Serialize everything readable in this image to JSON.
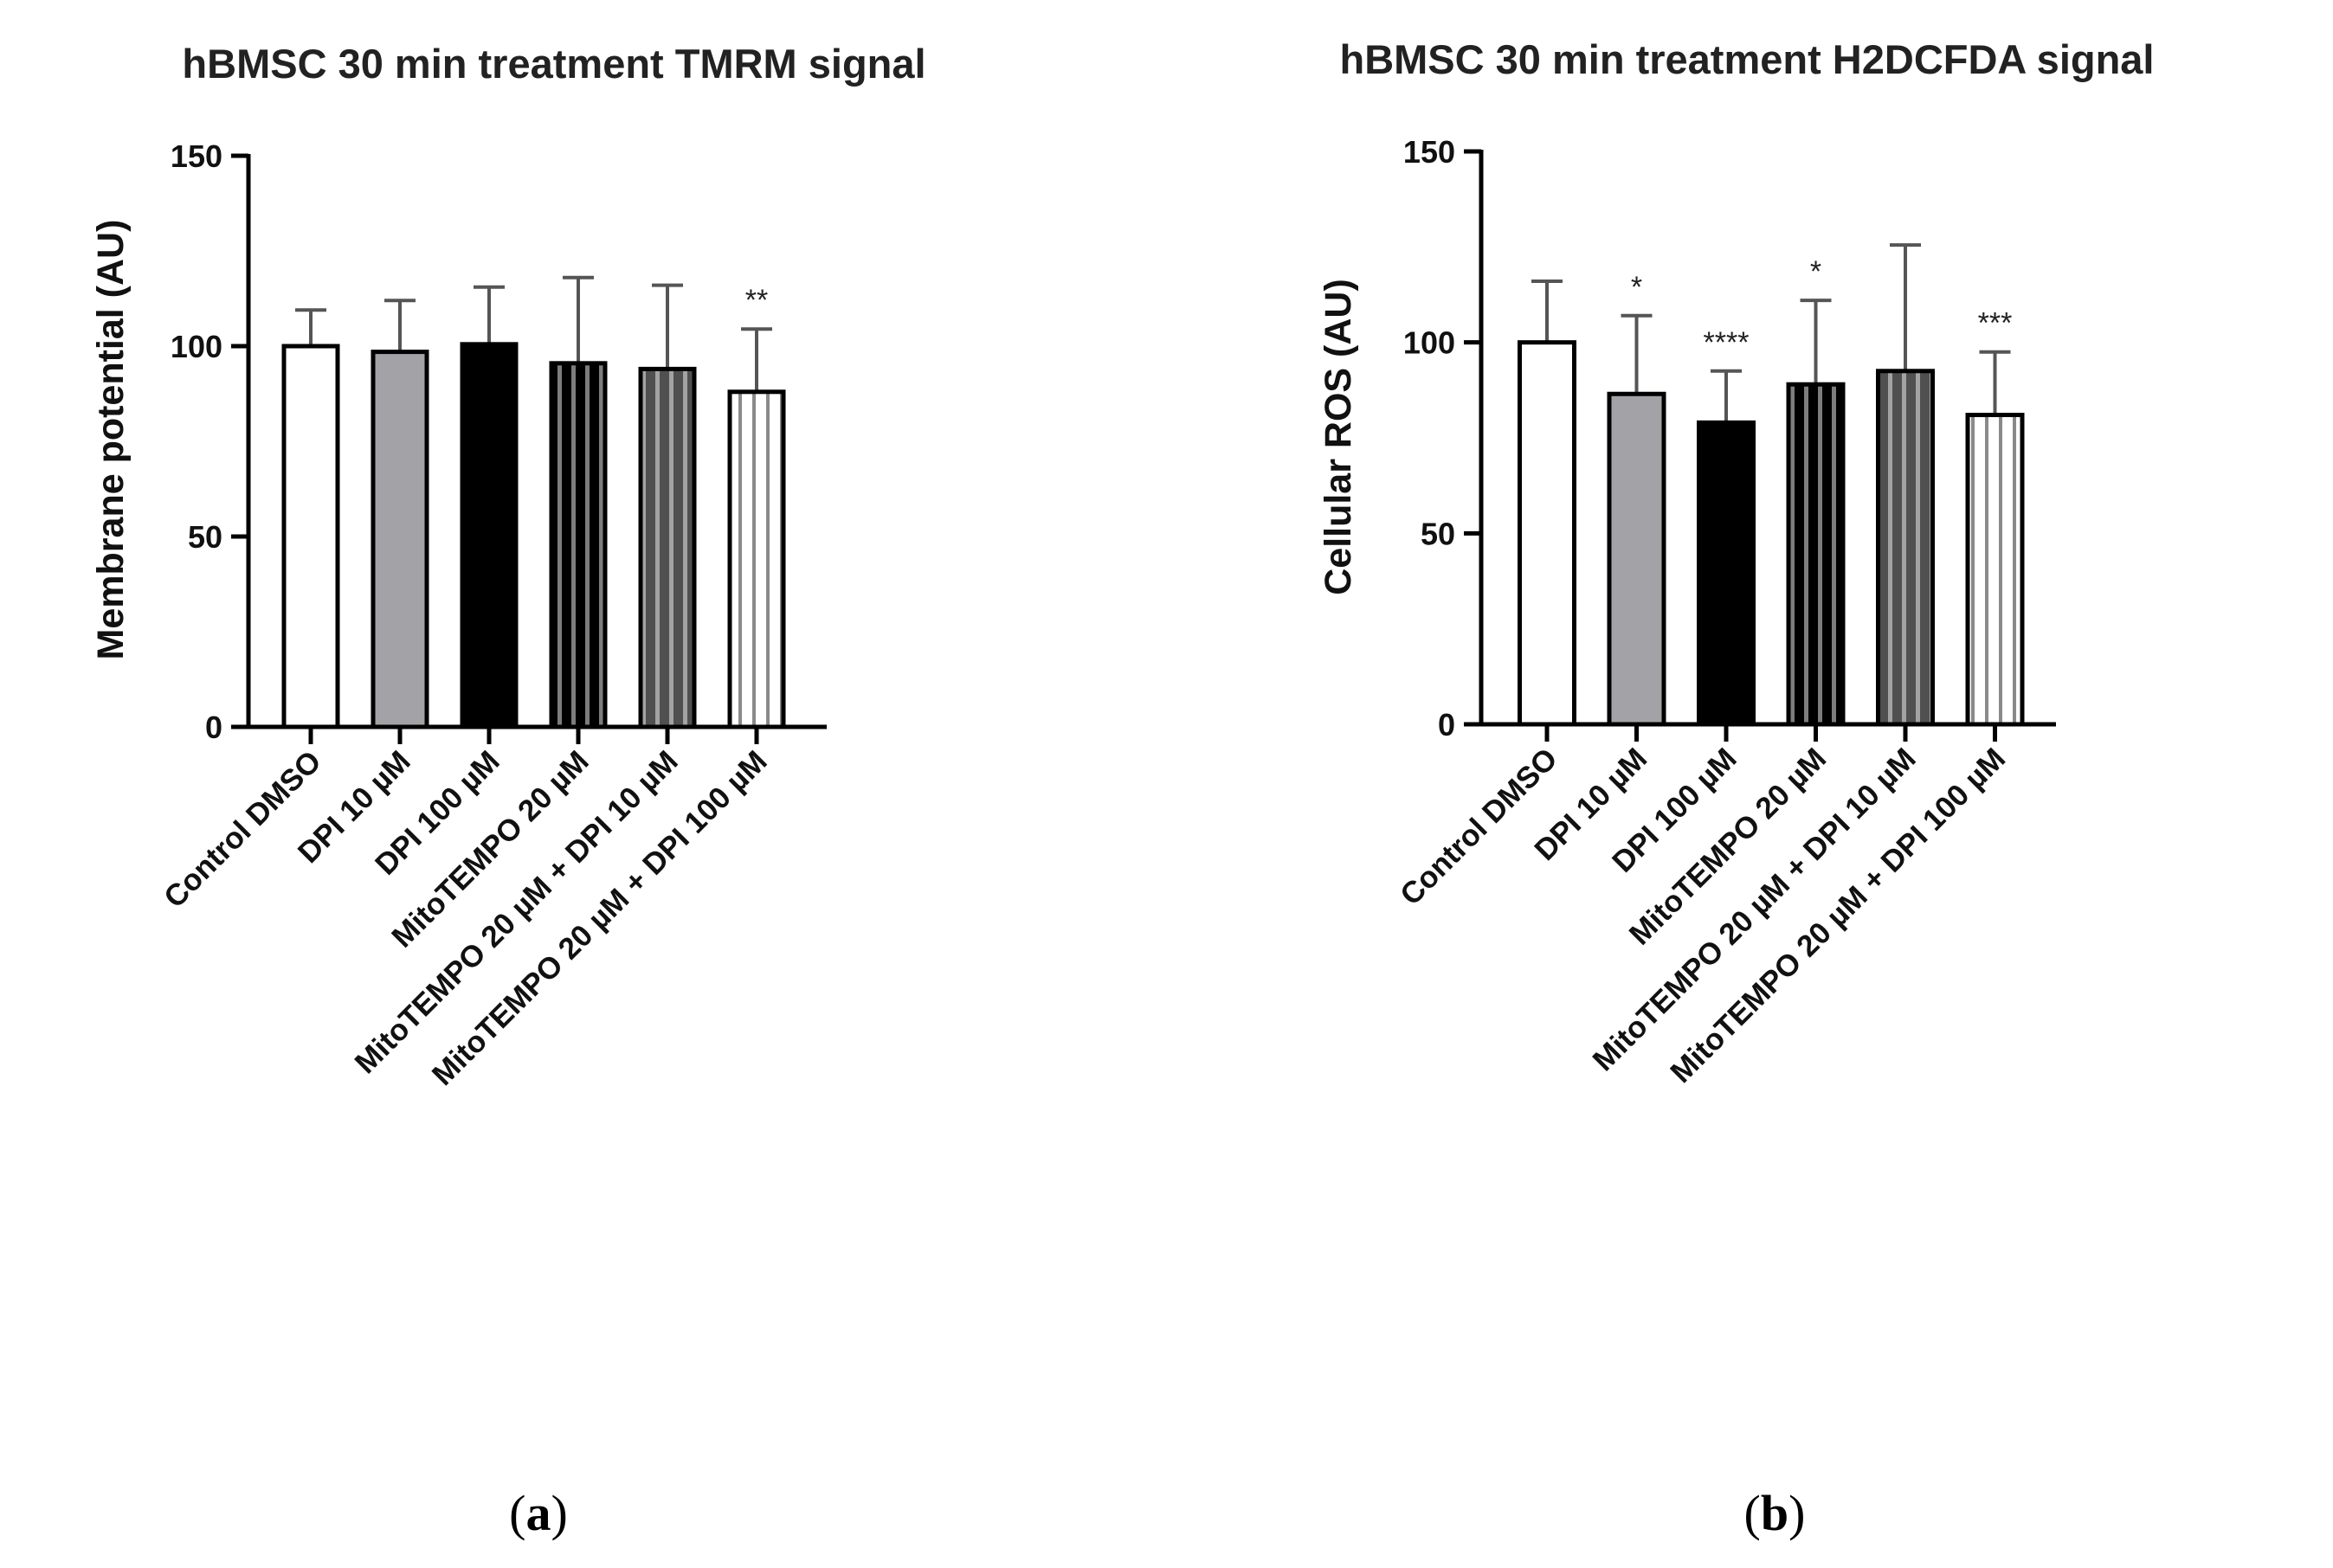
{
  "chart_data": [
    {
      "type": "bar",
      "panel": "a",
      "title": "hBMSC 30 min treatment TMRM signal",
      "xlabel": "",
      "ylabel": "Membrane potential (AU)",
      "ylim": [
        0,
        150
      ],
      "yticks": [
        0,
        50,
        100,
        150
      ],
      "categories": [
        "Control DMSO",
        "DPI 10 µM",
        "DPI 100 µM",
        "MitoTEMPO 20 µM",
        "MitoTEMPO 20 µM + DPI 10 µM",
        "MitoTEMPO 20 µM + DPI 100 µM"
      ],
      "values": [
        100,
        98.5,
        100.5,
        95.5,
        94,
        88
      ],
      "errors": [
        9.5,
        13.5,
        15,
        22.5,
        22,
        16.5
      ],
      "significance": [
        "",
        "",
        "",
        "",
        "",
        "**"
      ],
      "fills": [
        "white",
        "gray",
        "black",
        "black-stripes",
        "gray-stripes",
        "white-stripes"
      ]
    },
    {
      "type": "bar",
      "panel": "b",
      "title": "hBMSC 30 min treatment H2DCFDA signal",
      "xlabel": "",
      "ylabel": "Cellular ROS (AU)",
      "ylim": [
        0,
        150
      ],
      "yticks": [
        0,
        50,
        100,
        150
      ],
      "categories": [
        "Control DMSO",
        "DPI 10 µM",
        "DPI 100 µM",
        "MitoTEMPO 20 µM",
        "MitoTEMPO 20 µM + DPI 10 µM",
        "MitoTEMPO 20 µM + DPI 100 µM"
      ],
      "values": [
        100,
        86.5,
        79,
        89,
        92.5,
        81
      ],
      "errors": [
        16,
        20.5,
        13.5,
        22,
        33,
        16.5
      ],
      "significance": [
        "",
        "*",
        "****",
        "*",
        "",
        "***"
      ],
      "fills": [
        "white",
        "gray",
        "black",
        "black-stripes",
        "gray-stripes",
        "white-stripes"
      ]
    }
  ],
  "panel_labels": [
    "a",
    "b"
  ],
  "colors": {
    "gray": "#a3a3a7",
    "black": "#000000",
    "white": "#ffffff",
    "dark_gray": "#5a5a5a",
    "error_bar": "#555555"
  }
}
